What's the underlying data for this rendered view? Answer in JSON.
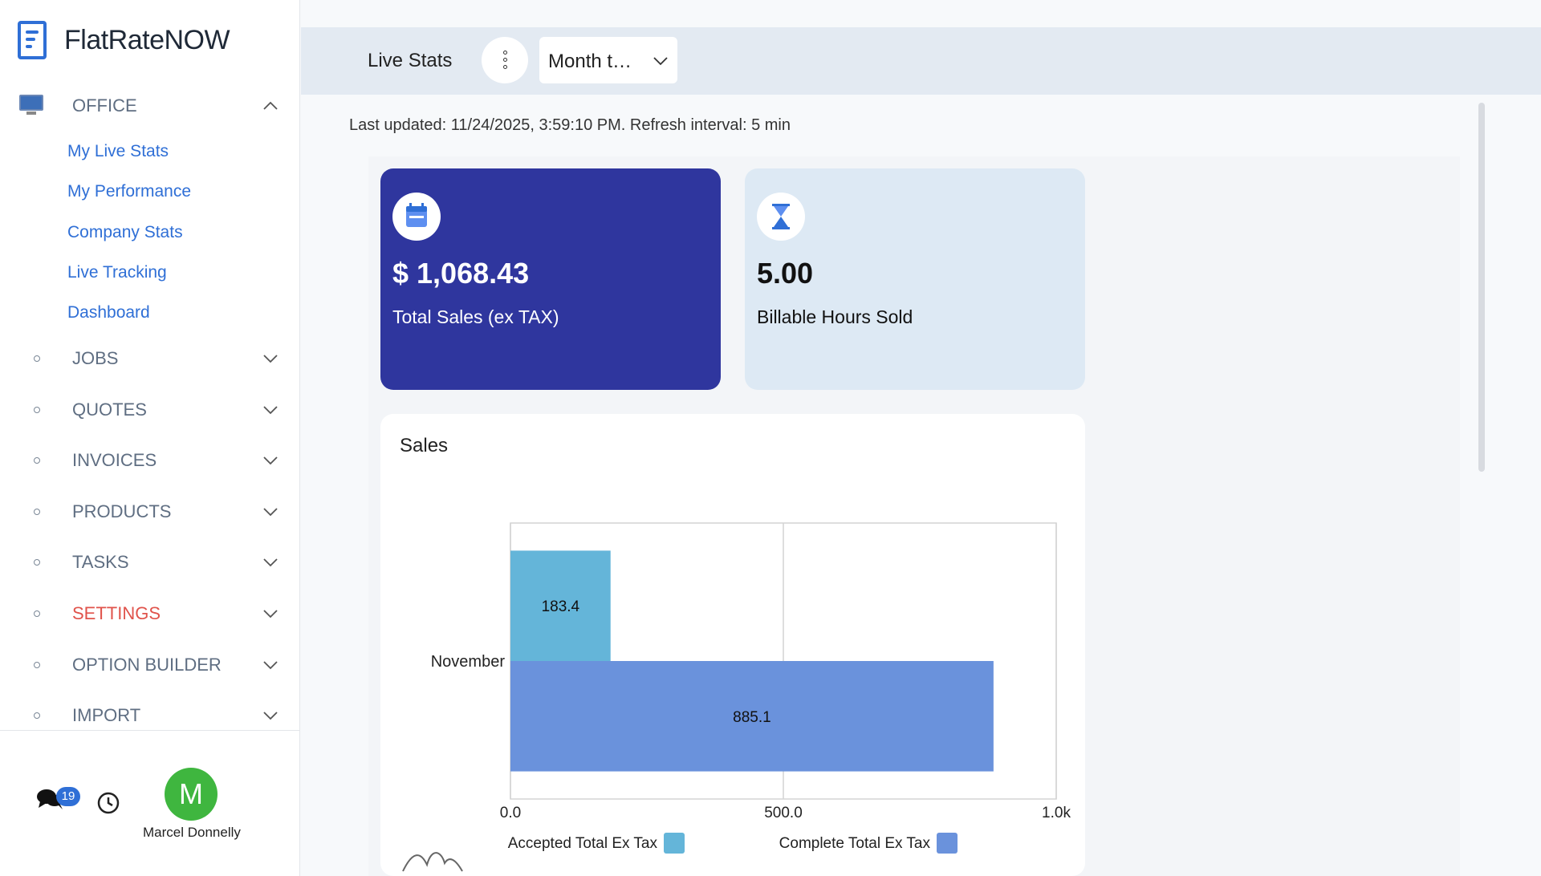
{
  "app": {
    "name": "FlatRateNOW"
  },
  "sidebar": {
    "office": {
      "label": "OFFICE",
      "items": [
        "My Live Stats",
        "My Performance",
        "Company Stats",
        "Live Tracking",
        "Dashboard"
      ]
    },
    "sections": [
      {
        "label": "JOBS"
      },
      {
        "label": "QUOTES"
      },
      {
        "label": "INVOICES"
      },
      {
        "label": "PRODUCTS"
      },
      {
        "label": "TASKS"
      },
      {
        "label": "SETTINGS",
        "color": "#e0534b"
      },
      {
        "label": "OPTION BUILDER"
      },
      {
        "label": "IMPORT"
      }
    ],
    "footer": {
      "chat_badge": "19",
      "avatar_initial": "M",
      "user_name": "Marcel Donnelly"
    }
  },
  "header": {
    "title": "Live Stats",
    "period": "Month t…"
  },
  "last_updated": "Last updated: 11/24/2025, 3:59:10 PM. Refresh interval: 5 min",
  "cards": {
    "sales": {
      "value": "$ 1,068.43",
      "label": "Total Sales (ex TAX)",
      "icon": "calendar-icon",
      "color": "#2f369e"
    },
    "hours": {
      "value": "5.00",
      "label": "Billable Hours Sold",
      "icon": "hourglass-icon",
      "color": "#dde9f4"
    }
  },
  "chart_data": {
    "type": "bar",
    "orientation": "horizontal",
    "title": "Sales",
    "categories": [
      "November"
    ],
    "series": [
      {
        "name": "Accepted Total Ex Tax",
        "values": [
          183.4
        ],
        "color": "#64b5d9"
      },
      {
        "name": "Complete Total Ex Tax",
        "values": [
          885.1
        ],
        "color": "#6a92dc"
      }
    ],
    "xlim": [
      0,
      1000
    ],
    "x_ticks": [
      "0.0",
      "500.0",
      "1.0k"
    ],
    "grid": true,
    "legend_position": "bottom"
  }
}
